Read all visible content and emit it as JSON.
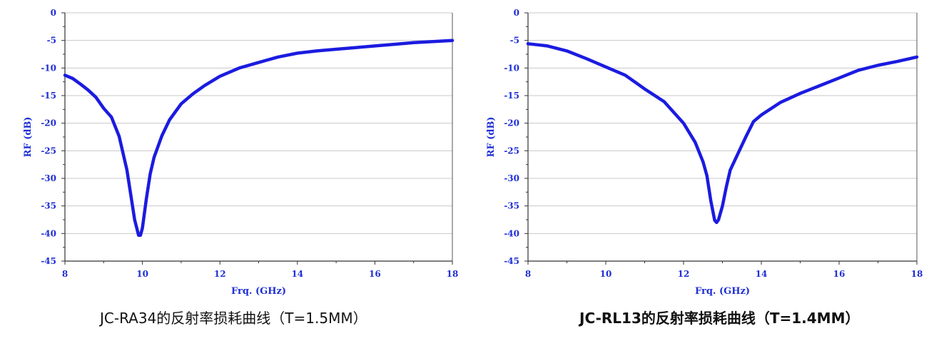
{
  "chart_data": [
    {
      "type": "line",
      "title": "",
      "xlabel": "Frq. (GHz)",
      "ylabel": "RF (dB)",
      "xlim": [
        8,
        18
      ],
      "ylim": [
        -45,
        0
      ],
      "xticks": [
        8,
        10,
        12,
        14,
        16,
        18
      ],
      "yticks": [
        0,
        -5,
        -10,
        -15,
        -20,
        -25,
        -30,
        -35,
        -40,
        -45
      ],
      "grid": true,
      "line_color": "#1b1be0",
      "caption": "JC-RA34的反射率损耗曲线（T=1.5MM）",
      "series": [
        {
          "x": [
            8.0,
            8.2,
            8.4,
            8.6,
            8.8,
            9.0,
            9.2,
            9.4,
            9.6,
            9.7,
            9.8,
            9.9,
            9.95,
            10.0,
            10.1,
            10.2,
            10.3,
            10.5,
            10.7,
            11.0,
            11.3,
            11.6,
            12.0,
            12.5,
            13.0,
            13.5,
            14.0,
            14.5,
            15.0,
            15.5,
            16.0,
            16.5,
            17.0,
            17.5,
            18.0
          ],
          "y": [
            -11.3,
            -11.9,
            -12.9,
            -14.0,
            -15.3,
            -17.3,
            -18.9,
            -22.4,
            -28.5,
            -33.0,
            -37.5,
            -40.3,
            -40.3,
            -39.0,
            -33.8,
            -29.2,
            -26.2,
            -22.3,
            -19.4,
            -16.5,
            -14.7,
            -13.2,
            -11.5,
            -10.0,
            -9.0,
            -8.0,
            -7.3,
            -6.9,
            -6.6,
            -6.3,
            -6.0,
            -5.7,
            -5.4,
            -5.2,
            -5.0
          ]
        }
      ]
    },
    {
      "type": "line",
      "title": "",
      "xlabel": "Frq. (GHz)",
      "ylabel": "RF (dB)",
      "xlim": [
        8,
        18
      ],
      "ylim": [
        -45,
        0
      ],
      "xticks": [
        8,
        10,
        12,
        14,
        16,
        18
      ],
      "yticks": [
        0,
        -5,
        -10,
        -15,
        -20,
        -25,
        -30,
        -35,
        -40,
        -45
      ],
      "grid": true,
      "line_color": "#1b1be0",
      "caption": "JC-RL13的反射率损耗曲线（T=1.4MM）",
      "series": [
        {
          "x": [
            8.0,
            8.5,
            9.0,
            9.5,
            10.0,
            10.5,
            11.0,
            11.5,
            12.0,
            12.3,
            12.5,
            12.6,
            12.7,
            12.8,
            12.85,
            12.9,
            13.0,
            13.1,
            13.2,
            13.4,
            13.6,
            13.8,
            14.0,
            14.5,
            15.0,
            15.5,
            16.0,
            16.5,
            17.0,
            17.5,
            18.0
          ],
          "y": [
            -5.6,
            -6.0,
            -6.9,
            -8.3,
            -9.8,
            -11.3,
            -13.8,
            -16.1,
            -20.0,
            -23.5,
            -27.0,
            -29.5,
            -34.0,
            -37.6,
            -38.0,
            -37.5,
            -35.0,
            -31.5,
            -28.5,
            -25.5,
            -22.5,
            -19.7,
            -18.5,
            -16.2,
            -14.6,
            -13.2,
            -11.8,
            -10.4,
            -9.5,
            -8.8,
            -8.0
          ]
        }
      ]
    }
  ]
}
